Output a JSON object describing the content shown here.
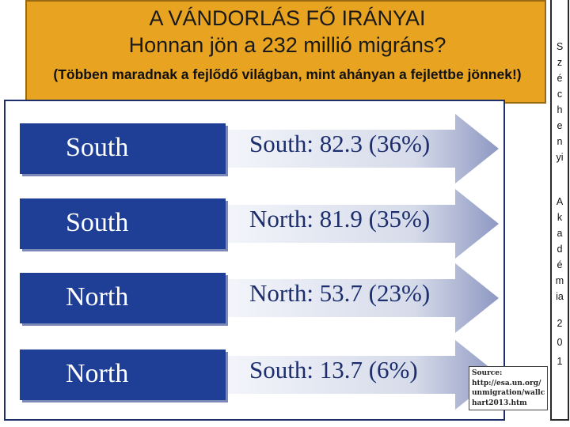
{
  "header": {
    "title_line1": "A VÁNDORLÁS FŐ IRÁNYAI",
    "title_line2": "Honnan jön a 232 millió migráns?",
    "subtitle": "(Többen maradnak a fejlődő világban, mint ahányan a fejlettbe jönnek!)"
  },
  "sidebar": {
    "chars": [
      "S",
      "z",
      "é",
      "c",
      "h",
      "e",
      "n",
      "yi",
      "A",
      "k",
      "a",
      "d",
      "é",
      "m",
      "ia",
      "2",
      "0",
      "1"
    ]
  },
  "flows": [
    {
      "from": "South",
      "label": "South: 82.3 (36%)"
    },
    {
      "from": "South",
      "label": "North: 81.9 (35%)"
    },
    {
      "from": "North",
      "label": "North: 53.7 (23%)"
    },
    {
      "from": "North",
      "label": "South: 13.7 (6%)"
    }
  ],
  "source": {
    "lines": [
      "Source:",
      "http://esa.un.org/",
      "unmigration/wallc",
      "hart2013.htm"
    ]
  },
  "colors": {
    "header_bg": "#e8a321",
    "box_blue": "#1e3f95",
    "arrow_light": "#dfe3ef",
    "arrow_dark": "#8e98c2",
    "text_blue": "#1c2e6d"
  }
}
